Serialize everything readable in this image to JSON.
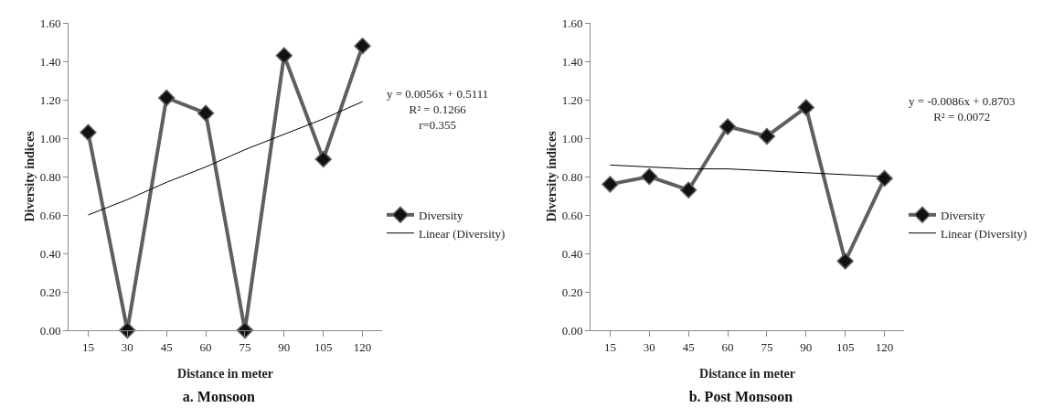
{
  "chart_data": [
    {
      "type": "line",
      "title": "a. Monsoon",
      "xlabel": "Distance in meter",
      "ylabel": "Diversity indices",
      "categories": [
        "15",
        "30",
        "45",
        "60",
        "75",
        "90",
        "105",
        "120"
      ],
      "series": [
        {
          "name": "Diversity",
          "color": "#5f5f5f",
          "marker": "diamond",
          "values": [
            1.03,
            0,
            1.21,
            1.13,
            0,
            1.43,
            0.89,
            1.48
          ]
        },
        {
          "name": "Linear (Diversity)",
          "color": "#000000",
          "marker": "none",
          "values": [
            0.6,
            0.68,
            0.77,
            0.85,
            0.94,
            1.02,
            1.1,
            1.19
          ]
        }
      ],
      "ylim": [
        0,
        1.6
      ],
      "yticks": [
        {
          "value": 0,
          "label": "0.00"
        },
        {
          "value": 0.2,
          "label": "0.20"
        },
        {
          "value": 0.4,
          "label": "0.40"
        },
        {
          "value": 0.6,
          "label": "0.60"
        },
        {
          "value": 0.8,
          "label": "0.80"
        },
        {
          "value": 1,
          "label": "1.00"
        },
        {
          "value": 1.2,
          "label": "1.20"
        },
        {
          "value": 1.4,
          "label": "1.40"
        },
        {
          "value": 1.6,
          "label": "1.60"
        }
      ],
      "annotations": [
        "y = 0.0056x + 0.5111\nR² = 0.1266\nr=0.355"
      ],
      "grid": false,
      "legend": "right"
    },
    {
      "type": "line",
      "title": "b. Post Monsoon",
      "xlabel": "Distance in meter",
      "ylabel": "Diversity indices",
      "categories": [
        "15",
        "30",
        "45",
        "60",
        "75",
        "90",
        "105",
        "120"
      ],
      "series": [
        {
          "name": "Diversity",
          "color": "#5f5f5f",
          "marker": "diamond",
          "values": [
            0.76,
            0.8,
            0.73,
            1.06,
            1.01,
            1.16,
            0.36,
            0.79
          ]
        },
        {
          "name": "Linear (Diversity)",
          "color": "#000000",
          "marker": "none",
          "values": [
            0.86,
            0.85,
            0.84,
            0.84,
            0.83,
            0.82,
            0.81,
            0.8
          ]
        }
      ],
      "ylim": [
        0,
        1.6
      ],
      "yticks": [
        {
          "value": 0,
          "label": "0.00"
        },
        {
          "value": 0.2,
          "label": "0.20"
        },
        {
          "value": 0.4,
          "label": "0.40"
        },
        {
          "value": 0.6,
          "label": "0.60"
        },
        {
          "value": 0.8,
          "label": "0.80"
        },
        {
          "value": 1,
          "label": "1.00"
        },
        {
          "value": 1.2,
          "label": "1.20"
        },
        {
          "value": 1.4,
          "label": "1.40"
        },
        {
          "value": 1.6,
          "label": "1.60"
        }
      ],
      "annotations": [
        "y = -0.0086x + 0.8703\nR² = 0.0072"
      ],
      "grid": false,
      "legend": "right"
    }
  ]
}
